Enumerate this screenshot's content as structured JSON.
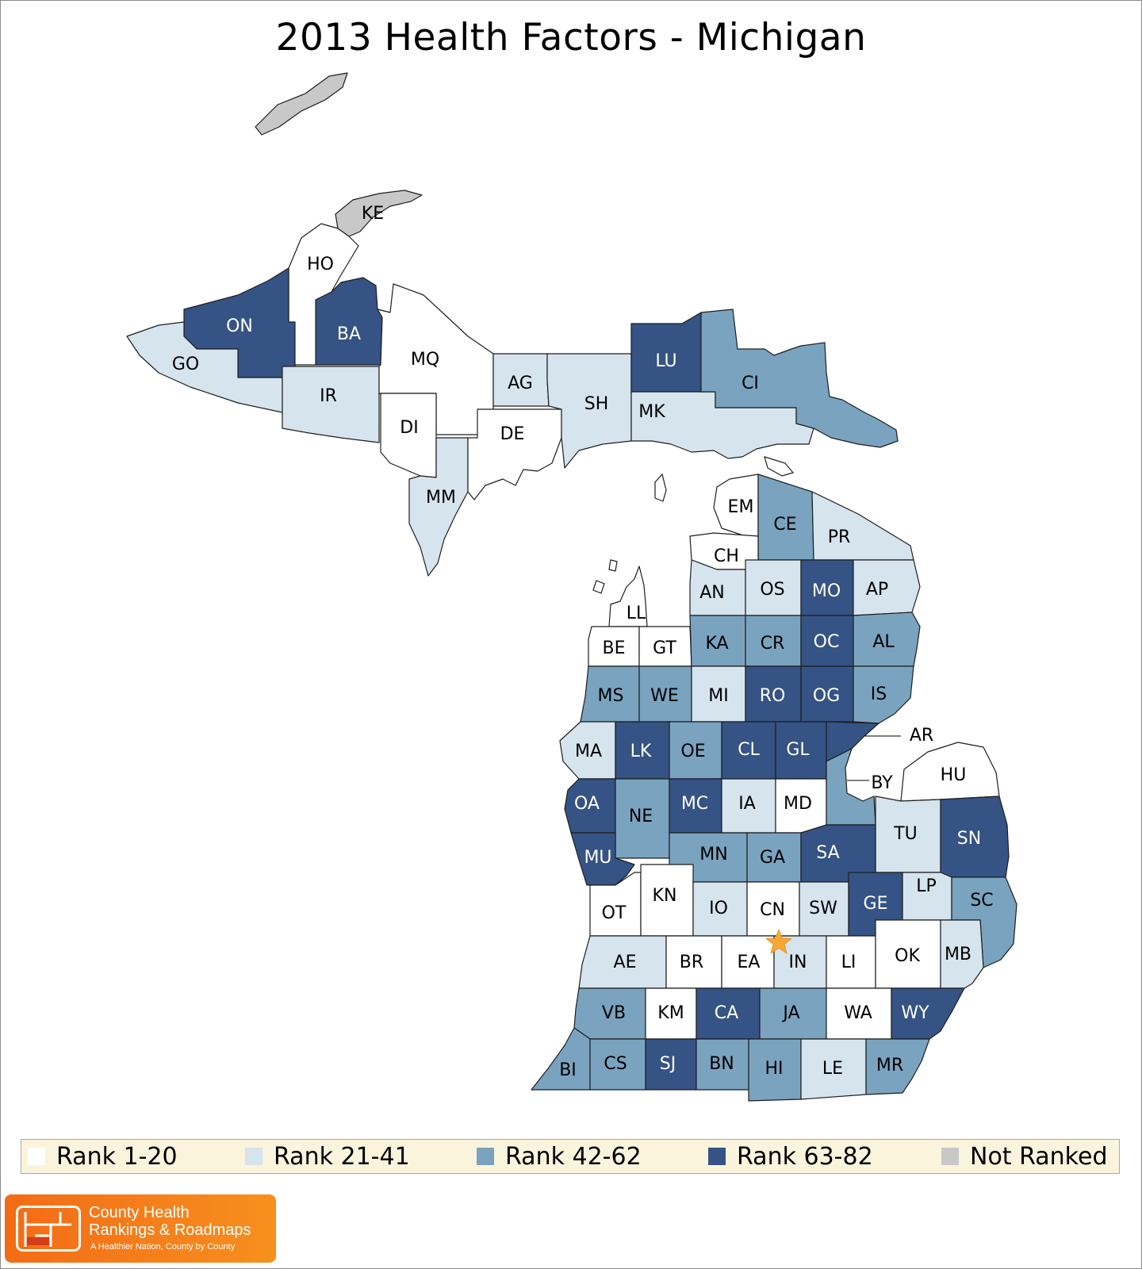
{
  "title": "2013 Health Factors - Michigan",
  "colors": {
    "rank_1_20": "#ffffff",
    "rank_21_41": "#d6e4ee",
    "rank_42_62": "#7aa3bf",
    "rank_63_82": "#355384",
    "not_ranked": "#c8c8c8"
  },
  "legend": [
    {
      "label": "Rank 1-20",
      "class": "rank_1_20"
    },
    {
      "label": "Rank 21-41",
      "class": "rank_21_41"
    },
    {
      "label": "Rank 42-62",
      "class": "rank_42_62"
    },
    {
      "label": "Rank 63-82",
      "class": "rank_63_82"
    },
    {
      "label": "Not Ranked",
      "class": "not_ranked"
    }
  ],
  "counties": [
    {
      "code": "KE",
      "class": "not_ranked"
    },
    {
      "code": "HO",
      "class": "rank_1_20"
    },
    {
      "code": "ON",
      "class": "rank_63_82"
    },
    {
      "code": "BA",
      "class": "rank_63_82"
    },
    {
      "code": "GO",
      "class": "rank_21_41"
    },
    {
      "code": "IR",
      "class": "rank_21_41"
    },
    {
      "code": "MQ",
      "class": "rank_1_20"
    },
    {
      "code": "DI",
      "class": "rank_1_20"
    },
    {
      "code": "MM",
      "class": "rank_21_41"
    },
    {
      "code": "DE",
      "class": "rank_1_20"
    },
    {
      "code": "AG",
      "class": "rank_21_41"
    },
    {
      "code": "SH",
      "class": "rank_21_41"
    },
    {
      "code": "LU",
      "class": "rank_63_82"
    },
    {
      "code": "MK",
      "class": "rank_21_41"
    },
    {
      "code": "CI",
      "class": "rank_42_62"
    },
    {
      "code": "EM",
      "class": "rank_1_20"
    },
    {
      "code": "CE",
      "class": "rank_42_62"
    },
    {
      "code": "PR",
      "class": "rank_21_41"
    },
    {
      "code": "CH",
      "class": "rank_1_20"
    },
    {
      "code": "LL",
      "class": "rank_1_20"
    },
    {
      "code": "AN",
      "class": "rank_21_41"
    },
    {
      "code": "OS",
      "class": "rank_21_41"
    },
    {
      "code": "MO",
      "class": "rank_63_82"
    },
    {
      "code": "AP",
      "class": "rank_21_41"
    },
    {
      "code": "BE",
      "class": "rank_1_20"
    },
    {
      "code": "GT",
      "class": "rank_1_20"
    },
    {
      "code": "KA",
      "class": "rank_42_62"
    },
    {
      "code": "CR",
      "class": "rank_42_62"
    },
    {
      "code": "OC",
      "class": "rank_63_82"
    },
    {
      "code": "AL",
      "class": "rank_42_62"
    },
    {
      "code": "MS",
      "class": "rank_42_62"
    },
    {
      "code": "WE",
      "class": "rank_42_62"
    },
    {
      "code": "MI",
      "class": "rank_21_41"
    },
    {
      "code": "RO",
      "class": "rank_63_82"
    },
    {
      "code": "OG",
      "class": "rank_63_82"
    },
    {
      "code": "IS",
      "class": "rank_42_62"
    },
    {
      "code": "MA",
      "class": "rank_21_41"
    },
    {
      "code": "LK",
      "class": "rank_63_82"
    },
    {
      "code": "OE",
      "class": "rank_42_62"
    },
    {
      "code": "CL",
      "class": "rank_63_82"
    },
    {
      "code": "GL",
      "class": "rank_63_82"
    },
    {
      "code": "AR",
      "class": "rank_63_82"
    },
    {
      "code": "OA",
      "class": "rank_63_82"
    },
    {
      "code": "NE",
      "class": "rank_42_62"
    },
    {
      "code": "MC",
      "class": "rank_63_82"
    },
    {
      "code": "IA",
      "class": "rank_21_41"
    },
    {
      "code": "MD",
      "class": "rank_1_20"
    },
    {
      "code": "BY",
      "class": "rank_42_62"
    },
    {
      "code": "HU",
      "class": "rank_1_20"
    },
    {
      "code": "TU",
      "class": "rank_21_41"
    },
    {
      "code": "SN",
      "class": "rank_63_82"
    },
    {
      "code": "MU",
      "class": "rank_63_82"
    },
    {
      "code": "MN",
      "class": "rank_42_62"
    },
    {
      "code": "GA",
      "class": "rank_42_62"
    },
    {
      "code": "SA",
      "class": "rank_63_82"
    },
    {
      "code": "OT",
      "class": "rank_1_20"
    },
    {
      "code": "KN",
      "class": "rank_1_20"
    },
    {
      "code": "IO",
      "class": "rank_21_41"
    },
    {
      "code": "CN",
      "class": "rank_1_20"
    },
    {
      "code": "SW",
      "class": "rank_21_41"
    },
    {
      "code": "GE",
      "class": "rank_63_82"
    },
    {
      "code": "LP",
      "class": "rank_21_41"
    },
    {
      "code": "SC",
      "class": "rank_42_62"
    },
    {
      "code": "AE",
      "class": "rank_21_41"
    },
    {
      "code": "BR",
      "class": "rank_1_20"
    },
    {
      "code": "EA",
      "class": "rank_1_20"
    },
    {
      "code": "IN",
      "class": "rank_21_41"
    },
    {
      "code": "LI",
      "class": "rank_1_20"
    },
    {
      "code": "OK",
      "class": "rank_1_20"
    },
    {
      "code": "MB",
      "class": "rank_21_41"
    },
    {
      "code": "VB",
      "class": "rank_42_62"
    },
    {
      "code": "KM",
      "class": "rank_1_20"
    },
    {
      "code": "CA",
      "class": "rank_63_82"
    },
    {
      "code": "JA",
      "class": "rank_42_62"
    },
    {
      "code": "WA",
      "class": "rank_1_20"
    },
    {
      "code": "WY",
      "class": "rank_63_82"
    },
    {
      "code": "BI",
      "class": "rank_42_62"
    },
    {
      "code": "CS",
      "class": "rank_42_62"
    },
    {
      "code": "SJ",
      "class": "rank_63_82"
    },
    {
      "code": "BN",
      "class": "rank_42_62"
    },
    {
      "code": "HI",
      "class": "rank_42_62"
    },
    {
      "code": "LE",
      "class": "rank_21_41"
    },
    {
      "code": "MR",
      "class": "rank_42_62"
    }
  ],
  "capital_marker": {
    "near": "IN",
    "icon": "star-icon",
    "color": "#f7a833"
  },
  "logo": {
    "line1": "County Health",
    "line2": "Rankings & Roadmaps",
    "tagline": "A Healthier Nation, County by County"
  }
}
